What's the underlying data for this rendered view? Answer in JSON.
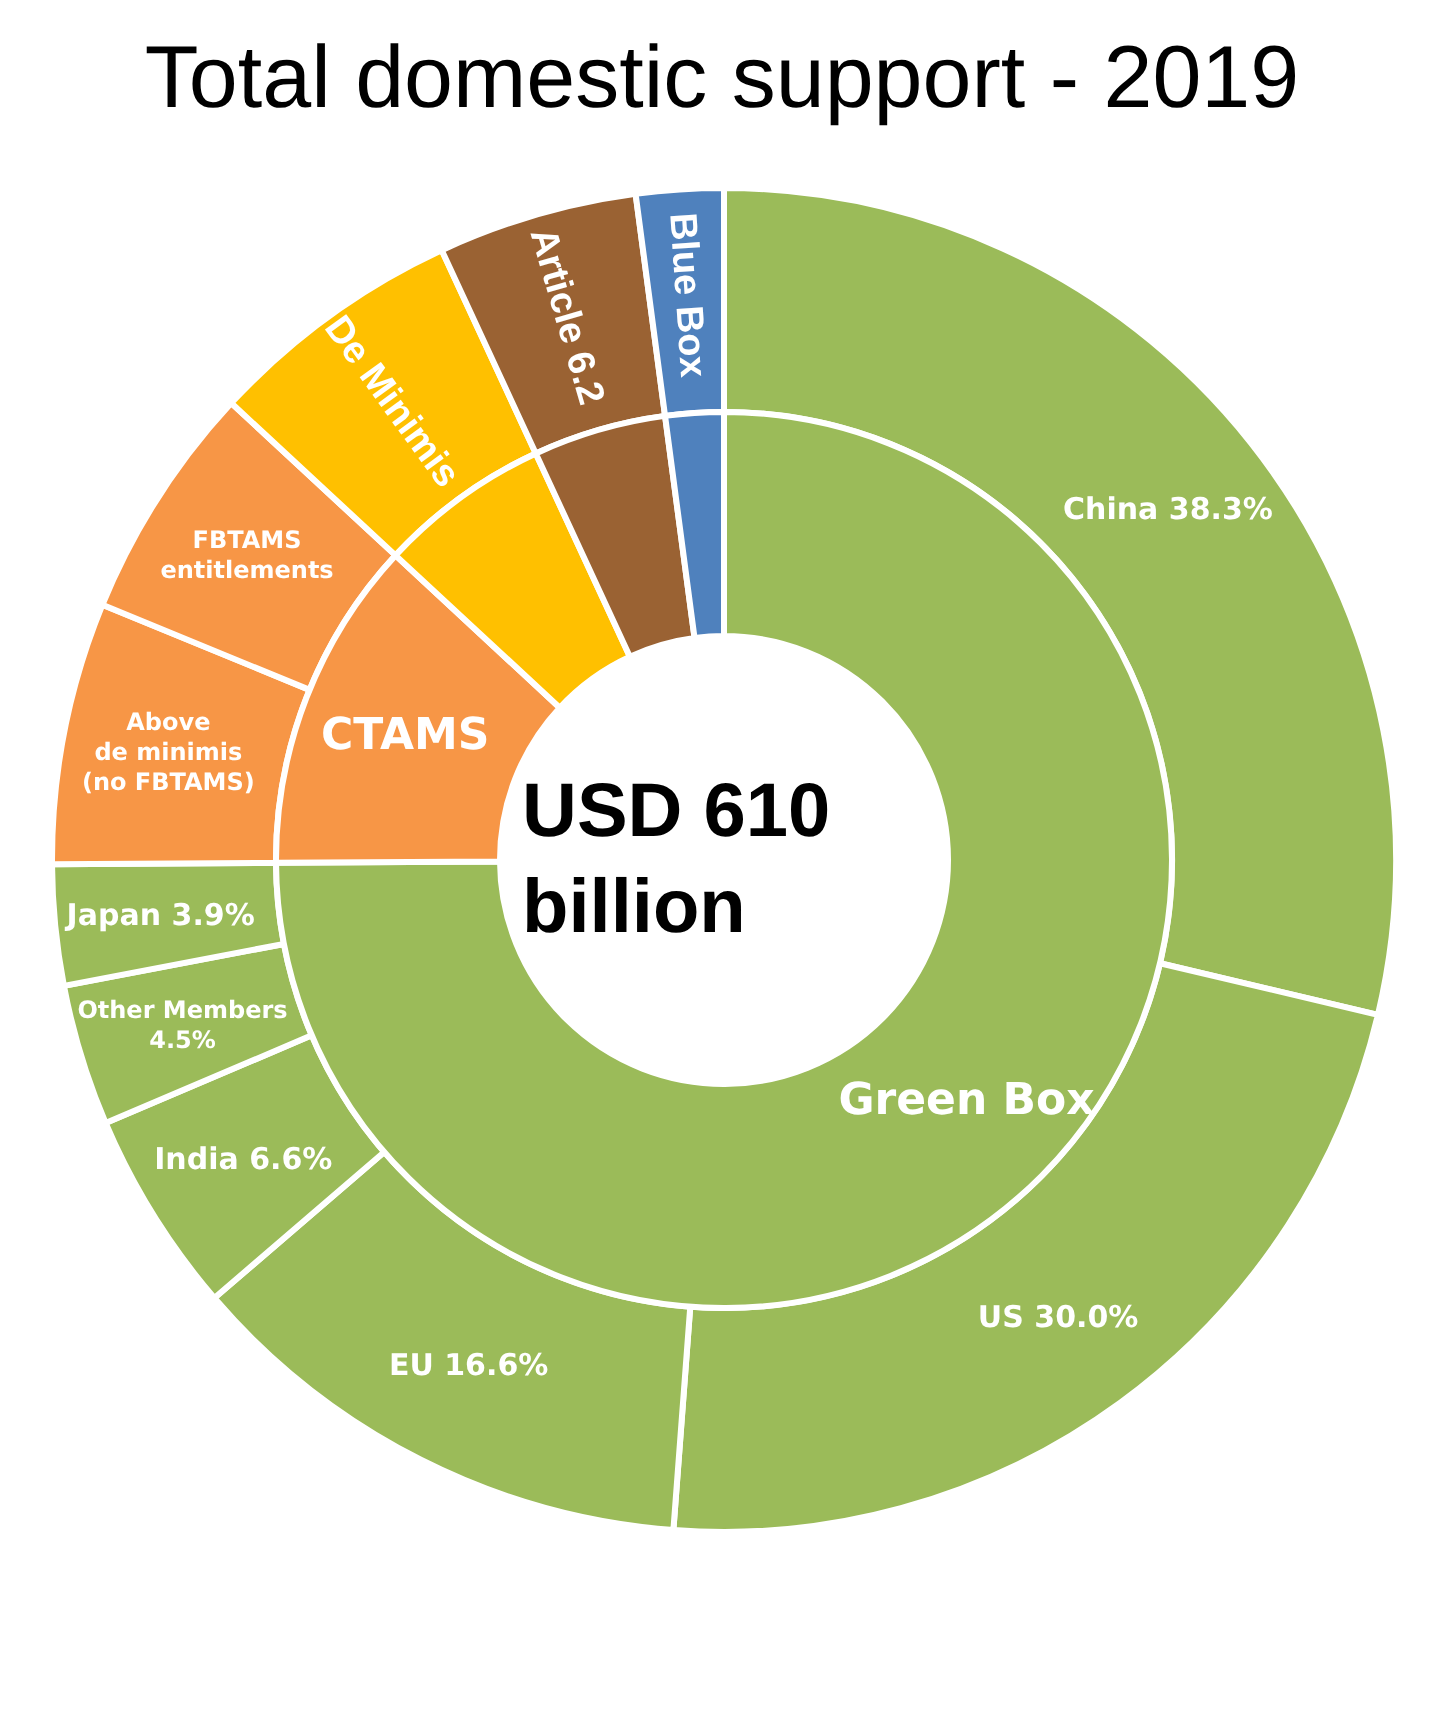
{
  "chart_data": [
    {
      "type": "donut",
      "title": "Total domestic support - 2019",
      "annotations": [
        "USD 610\nbillion"
      ],
      "legend": false,
      "categories": [
        "Green Box",
        "CTAMS",
        null,
        null,
        null
      ],
      "values": [
        74.9,
        12,
        6.2,
        4.8,
        2.1
      ],
      "colors": [
        "#9bbb59",
        "#f79646",
        "#ffc000",
        "#9a6233",
        "#4f81bd"
      ]
    },
    {
      "type": "donut",
      "legend": false,
      "categories": [
        "China 38.3%",
        "US 30.0%",
        "EU 16.6%",
        "India 6.6%",
        "Other Members\n4.5%",
        "Japan 3.9%",
        "Above\nde minimis\n(no FBTAMS)",
        "FBTAMS\nentitlements",
        "De Minimis",
        "Article 6.2",
        "Blue Box"
      ],
      "values": [
        28.7,
        22.5,
        12.5,
        4.9,
        3.4,
        2.9,
        6.3,
        5.7,
        6.2,
        4.8,
        2.1
      ],
      "colors": [
        "#9bbb59",
        "#9bbb59",
        "#9bbb59",
        "#9bbb59",
        "#9bbb59",
        "#9bbb59",
        "#f79646",
        "#f79646",
        "#ffc000",
        "#9a6233",
        "#4f81bd"
      ]
    }
  ]
}
